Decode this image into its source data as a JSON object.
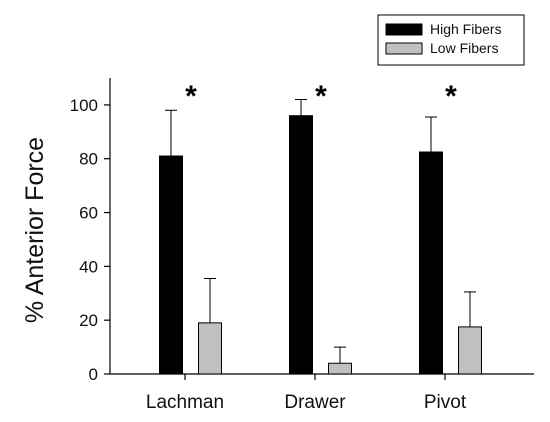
{
  "chart_data": {
    "type": "bar",
    "categories": [
      "Lachman",
      "Drawer",
      "Pivot"
    ],
    "series": [
      {
        "name": "High Fibers",
        "color": "#000000",
        "values": [
          81,
          96,
          82.5
        ],
        "error": [
          17,
          6,
          13
        ]
      },
      {
        "name": "Low Fibers",
        "color": "#c0c0c0",
        "values": [
          19,
          4,
          17.5
        ],
        "error": [
          16.5,
          6,
          13
        ]
      }
    ],
    "significance_marks": [
      "*",
      "*",
      "*"
    ],
    "ylabel": "% Anterior Force",
    "xlabel": "",
    "ylim": [
      0,
      110
    ],
    "yticks": [
      0,
      20,
      40,
      60,
      80,
      100
    ],
    "grid": false,
    "legend": "top-right"
  }
}
